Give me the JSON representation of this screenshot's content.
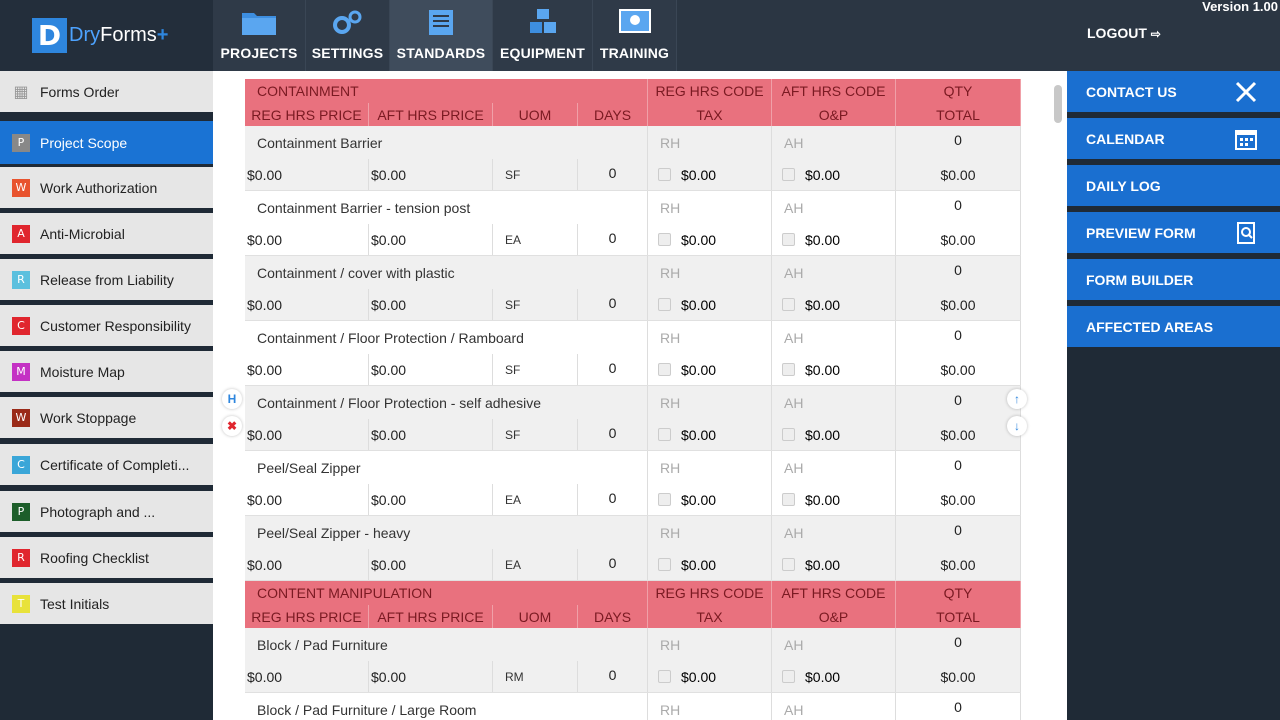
{
  "brand": {
    "letter": "D",
    "name1": "Dry",
    "name2": "Forms",
    "plus": "+"
  },
  "version": "Version 1.00",
  "logout": "LOGOUT",
  "nav": [
    {
      "label": "PROJECTS",
      "icon": "folder-icon"
    },
    {
      "label": "SETTINGS",
      "icon": "gears-icon"
    },
    {
      "label": "STANDARDS",
      "icon": "standards-icon"
    },
    {
      "label": "EQUIPMENT",
      "icon": "cubes-icon"
    },
    {
      "label": "TRAINING",
      "icon": "training-icon"
    }
  ],
  "sidebar": {
    "items": [
      {
        "label": "Forms Order",
        "badge": "",
        "color": "#e6e6e6"
      },
      {
        "label": "Project Scope",
        "badge": "P",
        "color": "#888888"
      },
      {
        "label": "Work Authorization",
        "badge": "W",
        "color": "#e8532e"
      },
      {
        "label": "Anti-Microbial",
        "badge": "A",
        "color": "#e0262e"
      },
      {
        "label": "Release from Liability",
        "badge": "R",
        "color": "#5bc0de"
      },
      {
        "label": "Customer Responsibility",
        "badge": "C",
        "color": "#e0262e"
      },
      {
        "label": "Moisture Map",
        "badge": "M",
        "color": "#c431c4"
      },
      {
        "label": "Work Stoppage",
        "badge": "W",
        "color": "#9a2a18"
      },
      {
        "label": "Certificate of Completi...",
        "badge": "C",
        "color": "#3aa6d8"
      },
      {
        "label": "Photograph and ...",
        "badge": "P",
        "color": "#1d5e2a"
      },
      {
        "label": "Roofing Checklist",
        "badge": "R",
        "color": "#e0262e"
      },
      {
        "label": "Test Initials",
        "badge": "T",
        "color": "#e8e23a"
      }
    ]
  },
  "rightbar": {
    "items": [
      {
        "label": "CONTACT US",
        "icon": "tools-icon"
      },
      {
        "label": "CALENDAR",
        "icon": "calendar-icon"
      },
      {
        "label": "DAILY LOG",
        "icon": ""
      },
      {
        "label": "PREVIEW FORM",
        "icon": "preview-icon"
      },
      {
        "label": "FORM BUILDER",
        "icon": ""
      },
      {
        "label": "AFFECTED AREAS",
        "icon": ""
      }
    ]
  },
  "controls": {
    "h_label": "H"
  },
  "table": {
    "header1": {
      "reg_code": "REG HRS CODE",
      "aft_code": "AFT HRS CODE",
      "qty": "QTY"
    },
    "header2": {
      "reg_price": "REG HRS PRICE",
      "aft_price": "AFT HRS PRICE",
      "uom": "UOM",
      "days": "DAYS",
      "tax": "TAX",
      "op": "O&P",
      "total": "TOTAL"
    },
    "sections": [
      {
        "title": "CONTAINMENT",
        "items": [
          {
            "name": "Containment Barrier",
            "rh": "RH",
            "ah": "AH",
            "qty": "0",
            "reg": "$0.00",
            "aft": "$0.00",
            "uom": "SF",
            "days": "0",
            "tax": "$0.00",
            "op": "$0.00",
            "total": "$0.00"
          },
          {
            "name": "Containment Barrier - tension post",
            "rh": "RH",
            "ah": "AH",
            "qty": "0",
            "reg": "$0.00",
            "aft": "$0.00",
            "uom": "EA",
            "days": "0",
            "tax": "$0.00",
            "op": "$0.00",
            "total": "$0.00"
          },
          {
            "name": "Containment / cover with plastic",
            "rh": "RH",
            "ah": "AH",
            "qty": "0",
            "reg": "$0.00",
            "aft": "$0.00",
            "uom": "SF",
            "days": "0",
            "tax": "$0.00",
            "op": "$0.00",
            "total": "$0.00"
          },
          {
            "name": "Containment / Floor Protection / Ramboard",
            "rh": "RH",
            "ah": "AH",
            "qty": "0",
            "reg": "$0.00",
            "aft": "$0.00",
            "uom": "SF",
            "days": "0",
            "tax": "$0.00",
            "op": "$0.00",
            "total": "$0.00"
          },
          {
            "name": "Containment / Floor Protection - self adhesive",
            "rh": "RH",
            "ah": "AH",
            "qty": "0",
            "reg": "$0.00",
            "aft": "$0.00",
            "uom": "SF",
            "days": "0",
            "tax": "$0.00",
            "op": "$0.00",
            "total": "$0.00"
          },
          {
            "name": "Peel/Seal Zipper",
            "rh": "RH",
            "ah": "AH",
            "qty": "0",
            "reg": "$0.00",
            "aft": "$0.00",
            "uom": "EA",
            "days": "0",
            "tax": "$0.00",
            "op": "$0.00",
            "total": "$0.00"
          },
          {
            "name": "Peel/Seal Zipper - heavy",
            "rh": "RH",
            "ah": "AH",
            "qty": "0",
            "reg": "$0.00",
            "aft": "$0.00",
            "uom": "EA",
            "days": "0",
            "tax": "$0.00",
            "op": "$0.00",
            "total": "$0.00"
          }
        ]
      },
      {
        "title": "CONTENT MANIPULATION",
        "items": [
          {
            "name": "Block / Pad Furniture",
            "rh": "RH",
            "ah": "AH",
            "qty": "0",
            "reg": "$0.00",
            "aft": "$0.00",
            "uom": "RM",
            "days": "0",
            "tax": "$0.00",
            "op": "$0.00",
            "total": "$0.00"
          },
          {
            "name": "Block / Pad Furniture / Large Room",
            "rh": "RH",
            "ah": "AH",
            "qty": "0",
            "reg": "",
            "aft": "",
            "uom": "",
            "days": "",
            "tax": "",
            "op": "",
            "total": ""
          }
        ]
      }
    ]
  }
}
